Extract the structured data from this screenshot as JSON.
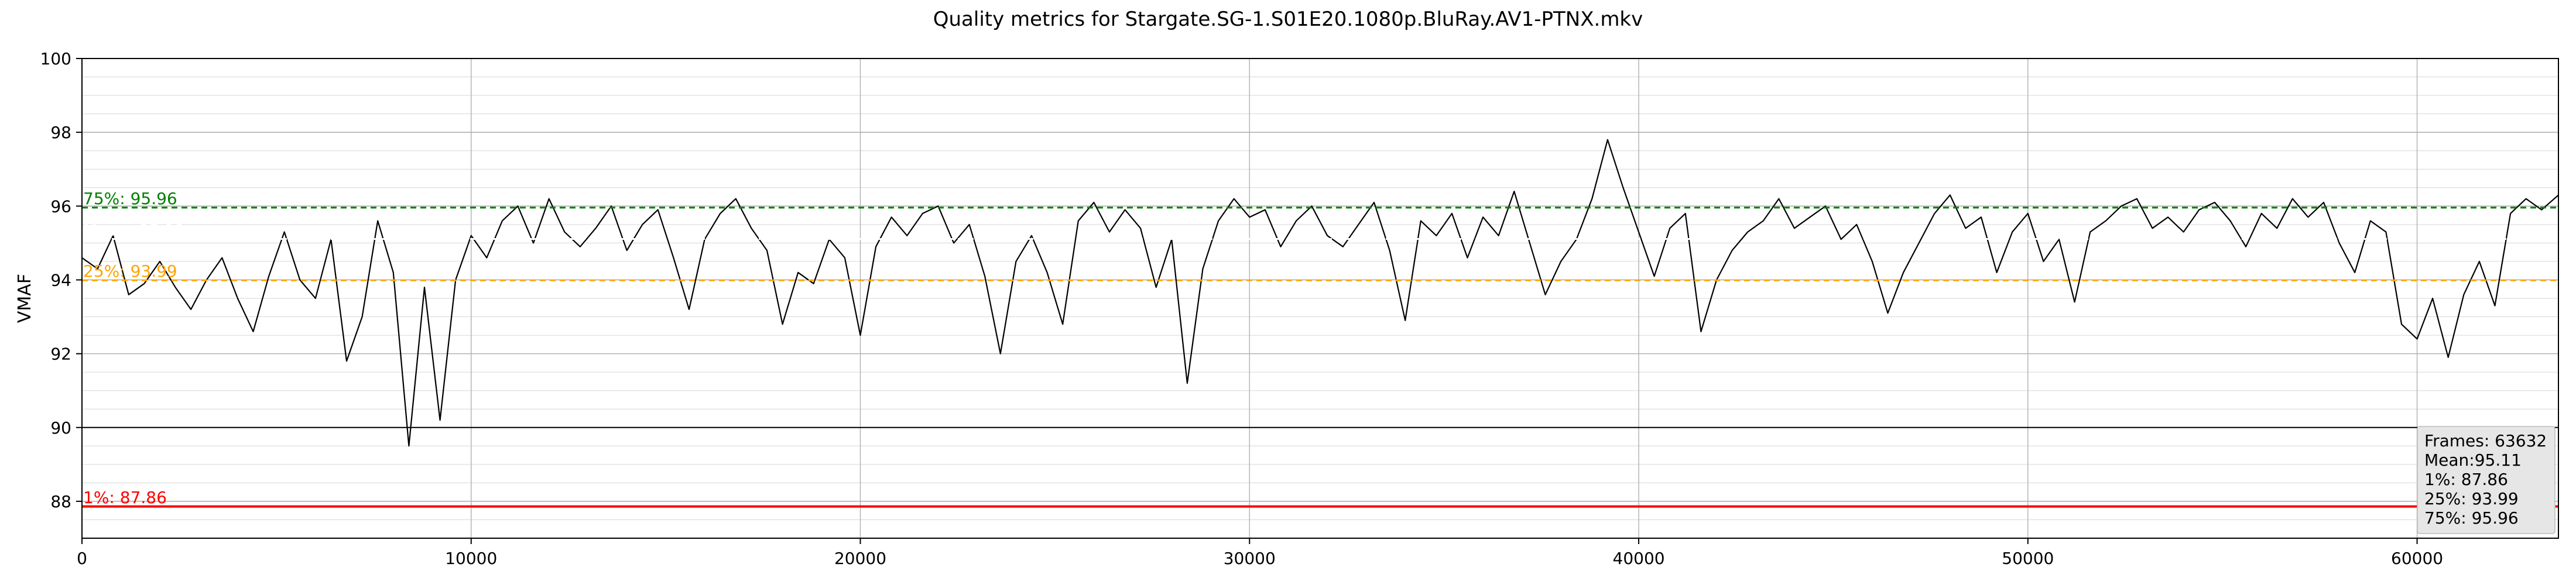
{
  "chart_data": {
    "type": "line",
    "title": "Quality metrics for Stargate.SG-1.S01E20.1080p.BluRay.AV1-PTNX.mkv",
    "xlabel": "",
    "ylabel": "VMAF",
    "xlim": [
      0,
      63632
    ],
    "ylim": [
      87,
      100
    ],
    "x_ticks": [
      0,
      10000,
      20000,
      30000,
      40000,
      50000,
      60000
    ],
    "y_ticks": [
      88,
      90,
      92,
      94,
      96,
      98,
      100
    ],
    "grid": true,
    "series": [
      {
        "values": [
          [
            0,
            94.6
          ],
          [
            400,
            94.3
          ],
          [
            800,
            95.2
          ],
          [
            1200,
            93.6
          ],
          [
            1600,
            93.9
          ],
          [
            2000,
            94.5
          ],
          [
            2400,
            93.8
          ],
          [
            2800,
            93.2
          ],
          [
            3200,
            94.0
          ],
          [
            3600,
            94.6
          ],
          [
            4000,
            93.5
          ],
          [
            4400,
            92.6
          ],
          [
            4800,
            94.1
          ],
          [
            5200,
            95.3
          ],
          [
            5600,
            94.0
          ],
          [
            6000,
            93.5
          ],
          [
            6400,
            95.1
          ],
          [
            6800,
            91.8
          ],
          [
            7200,
            93.0
          ],
          [
            7600,
            95.6
          ],
          [
            8000,
            94.2
          ],
          [
            8400,
            89.5
          ],
          [
            8800,
            93.8
          ],
          [
            9200,
            90.2
          ],
          [
            9600,
            94.0
          ],
          [
            10000,
            95.2
          ],
          [
            10400,
            94.6
          ],
          [
            10800,
            95.6
          ],
          [
            11200,
            96.0
          ],
          [
            11600,
            95.0
          ],
          [
            12000,
            96.2
          ],
          [
            12400,
            95.3
          ],
          [
            12800,
            94.9
          ],
          [
            13200,
            95.4
          ],
          [
            13600,
            96.0
          ],
          [
            14000,
            94.8
          ],
          [
            14400,
            95.5
          ],
          [
            14800,
            95.9
          ],
          [
            15200,
            94.6
          ],
          [
            15600,
            93.2
          ],
          [
            16000,
            95.1
          ],
          [
            16400,
            95.8
          ],
          [
            16800,
            96.2
          ],
          [
            17200,
            95.4
          ],
          [
            17600,
            94.8
          ],
          [
            18000,
            92.8
          ],
          [
            18400,
            94.2
          ],
          [
            18800,
            93.9
          ],
          [
            19200,
            95.1
          ],
          [
            19600,
            94.6
          ],
          [
            20000,
            92.5
          ],
          [
            20400,
            94.9
          ],
          [
            20800,
            95.7
          ],
          [
            21200,
            95.2
          ],
          [
            21600,
            95.8
          ],
          [
            22000,
            96.0
          ],
          [
            22400,
            95.0
          ],
          [
            22800,
            95.5
          ],
          [
            23200,
            94.1
          ],
          [
            23600,
            92.0
          ],
          [
            24000,
            94.5
          ],
          [
            24400,
            95.2
          ],
          [
            24800,
            94.2
          ],
          [
            25200,
            92.8
          ],
          [
            25600,
            95.6
          ],
          [
            26000,
            96.1
          ],
          [
            26400,
            95.3
          ],
          [
            26800,
            95.9
          ],
          [
            27200,
            95.4
          ],
          [
            27600,
            93.8
          ],
          [
            28000,
            95.1
          ],
          [
            28400,
            91.2
          ],
          [
            28800,
            94.3
          ],
          [
            29200,
            95.6
          ],
          [
            29600,
            96.2
          ],
          [
            30000,
            95.7
          ],
          [
            30400,
            95.9
          ],
          [
            30800,
            94.9
          ],
          [
            31200,
            95.6
          ],
          [
            31600,
            96.0
          ],
          [
            32000,
            95.2
          ],
          [
            32400,
            94.9
          ],
          [
            32800,
            95.5
          ],
          [
            33200,
            96.1
          ],
          [
            33600,
            94.8
          ],
          [
            34000,
            92.9
          ],
          [
            34400,
            95.6
          ],
          [
            34800,
            95.2
          ],
          [
            35200,
            95.8
          ],
          [
            35600,
            94.6
          ],
          [
            36000,
            95.7
          ],
          [
            36400,
            95.2
          ],
          [
            36800,
            96.4
          ],
          [
            37200,
            95.0
          ],
          [
            37600,
            93.6
          ],
          [
            38000,
            94.5
          ],
          [
            38400,
            95.1
          ],
          [
            38800,
            96.2
          ],
          [
            39200,
            97.8
          ],
          [
            39600,
            96.5
          ],
          [
            40000,
            95.3
          ],
          [
            40400,
            94.1
          ],
          [
            40800,
            95.4
          ],
          [
            41200,
            95.8
          ],
          [
            41600,
            92.6
          ],
          [
            42000,
            94.0
          ],
          [
            42400,
            94.8
          ],
          [
            42800,
            95.3
          ],
          [
            43200,
            95.6
          ],
          [
            43600,
            96.2
          ],
          [
            44000,
            95.4
          ],
          [
            44400,
            95.7
          ],
          [
            44800,
            96.0
          ],
          [
            45200,
            95.1
          ],
          [
            45600,
            95.5
          ],
          [
            46000,
            94.5
          ],
          [
            46400,
            93.1
          ],
          [
            46800,
            94.2
          ],
          [
            47200,
            95.0
          ],
          [
            47600,
            95.8
          ],
          [
            48000,
            96.3
          ],
          [
            48400,
            95.4
          ],
          [
            48800,
            95.7
          ],
          [
            49200,
            94.2
          ],
          [
            49600,
            95.3
          ],
          [
            50000,
            95.8
          ],
          [
            50400,
            94.5
          ],
          [
            50800,
            95.1
          ],
          [
            51200,
            93.4
          ],
          [
            51600,
            95.3
          ],
          [
            52000,
            95.6
          ],
          [
            52400,
            96.0
          ],
          [
            52800,
            96.2
          ],
          [
            53200,
            95.4
          ],
          [
            53600,
            95.7
          ],
          [
            54000,
            95.3
          ],
          [
            54400,
            95.9
          ],
          [
            54800,
            96.1
          ],
          [
            55200,
            95.6
          ],
          [
            55600,
            94.9
          ],
          [
            56000,
            95.8
          ],
          [
            56400,
            95.4
          ],
          [
            56800,
            96.2
          ],
          [
            57200,
            95.7
          ],
          [
            57600,
            96.1
          ],
          [
            58000,
            95.0
          ],
          [
            58400,
            94.2
          ],
          [
            58800,
            95.6
          ],
          [
            59200,
            95.3
          ],
          [
            59600,
            92.8
          ],
          [
            60000,
            92.4
          ],
          [
            60400,
            93.5
          ],
          [
            60800,
            91.9
          ],
          [
            61200,
            93.6
          ],
          [
            61600,
            94.5
          ],
          [
            62000,
            93.3
          ],
          [
            62400,
            95.8
          ],
          [
            62800,
            96.2
          ],
          [
            63200,
            95.9
          ],
          [
            63632,
            96.3
          ]
        ]
      }
    ],
    "reference_lines": [
      {
        "label": "75%: 95.96",
        "value": 95.96,
        "color": "#008000",
        "style": "dashed"
      },
      {
        "label": "Mean: 95.11",
        "value": 95.11,
        "color": "#ffffff",
        "style": "dashed"
      },
      {
        "label": "25%: 93.99",
        "value": 93.99,
        "color": "#ffa500",
        "style": "dashed"
      },
      {
        "label": "1%: 87.86",
        "value": 87.86,
        "color": "#ff0000",
        "style": "solid"
      }
    ],
    "stats_box": {
      "placement": "bottom-right",
      "lines": [
        "Frames: 63632",
        "Mean:95.11",
        "1%: 87.86",
        "25%: 93.99",
        "75%: 95.96"
      ]
    }
  }
}
